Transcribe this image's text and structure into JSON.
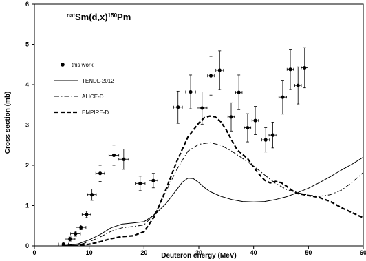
{
  "chart_data": {
    "type": "scatter",
    "title": {
      "sup_prefix": "nat",
      "main": "Sm(d,x)",
      "sup_suffix": "150",
      "suffix": "Pm"
    },
    "xlabel": "Deuteron energy (MeV)",
    "ylabel": "Cross section (mb)",
    "xlim": [
      0,
      60
    ],
    "ylim": [
      0,
      6
    ],
    "xticks": [
      0,
      10,
      20,
      30,
      40,
      50,
      60
    ],
    "yticks": [
      0,
      1,
      2,
      3,
      4,
      5,
      6
    ],
    "grid": false,
    "legend_position": "left",
    "legend": [
      {
        "label": "this work",
        "style": "points"
      },
      {
        "label": "TENDL-2012",
        "style": "solid"
      },
      {
        "label": "ALICE-D",
        "style": "dash-dot"
      },
      {
        "label": "EMPIRE-D",
        "style": "thick-dashed"
      }
    ],
    "colors": {
      "series": "#000000",
      "background": "#ffffff"
    },
    "series": [
      {
        "name": "this work",
        "kind": "points",
        "x": [
          5.3,
          6.5,
          7.5,
          8.5,
          9.5,
          10.5,
          12.0,
          14.5,
          16.3,
          19.3,
          21.7,
          26.2,
          28.5,
          30.6,
          32.2,
          33.8,
          35.9,
          37.3,
          38.9,
          40.3,
          42.2,
          43.5,
          45.3,
          46.7,
          48.1,
          49.3
        ],
        "y": [
          0.04,
          0.17,
          0.3,
          0.46,
          0.78,
          1.27,
          1.8,
          2.25,
          2.15,
          1.55,
          1.62,
          3.44,
          3.82,
          3.42,
          4.22,
          4.36,
          3.2,
          3.81,
          2.93,
          3.11,
          2.63,
          2.75,
          3.69,
          4.38,
          3.98,
          4.42
        ],
        "xerr": [
          0.9,
          0.9,
          0.9,
          0.9,
          0.8,
          0.8,
          0.8,
          0.9,
          0.9,
          0.9,
          0.8,
          0.8,
          0.9,
          0.9,
          0.6,
          0.7,
          0.6,
          0.6,
          0.6,
          0.6,
          0.7,
          0.7,
          0.7,
          0.6,
          0.6,
          0.6
        ],
        "yerr": [
          0.03,
          0.05,
          0.06,
          0.06,
          0.08,
          0.14,
          0.2,
          0.25,
          0.25,
          0.18,
          0.18,
          0.4,
          0.42,
          0.4,
          0.48,
          0.48,
          0.35,
          0.43,
          0.35,
          0.35,
          0.3,
          0.32,
          0.42,
          0.5,
          0.46,
          0.5
        ]
      },
      {
        "name": "TENDL-2012",
        "kind": "line",
        "dash": "solid",
        "x": [
          5,
          8,
          10,
          12,
          14,
          16,
          18,
          20,
          22,
          24,
          26,
          27,
          28,
          29,
          30,
          31,
          32,
          34,
          36,
          38,
          40,
          42,
          44,
          46,
          48,
          50,
          52,
          54,
          56,
          58,
          60
        ],
        "y": [
          0.0,
          0.05,
          0.15,
          0.28,
          0.45,
          0.54,
          0.57,
          0.6,
          0.78,
          1.05,
          1.4,
          1.58,
          1.68,
          1.67,
          1.57,
          1.45,
          1.35,
          1.23,
          1.15,
          1.1,
          1.09,
          1.1,
          1.15,
          1.22,
          1.32,
          1.43,
          1.57,
          1.72,
          1.88,
          2.03,
          2.2
        ]
      },
      {
        "name": "ALICE-D",
        "kind": "line",
        "dash": "dash-dot",
        "x": [
          5,
          8,
          10,
          12,
          14,
          16,
          18,
          20,
          22,
          24,
          26,
          28,
          30,
          32,
          34,
          36,
          38,
          40,
          42,
          44,
          46,
          48,
          50,
          52,
          54,
          56,
          58,
          60
        ],
        "y": [
          0.0,
          0.02,
          0.1,
          0.22,
          0.36,
          0.45,
          0.48,
          0.52,
          0.8,
          1.35,
          1.9,
          2.35,
          2.52,
          2.56,
          2.5,
          2.35,
          2.17,
          1.98,
          1.76,
          1.55,
          1.4,
          1.32,
          1.26,
          1.23,
          1.27,
          1.38,
          1.58,
          1.82
        ]
      },
      {
        "name": "EMPIRE-D",
        "kind": "line",
        "dash": "thick-dashed",
        "x": [
          5,
          8,
          10,
          12,
          14,
          16,
          18,
          20,
          22,
          24,
          26,
          28,
          30,
          31,
          32,
          33,
          34,
          35,
          36,
          37,
          38,
          39,
          40,
          41,
          42,
          43,
          44,
          45,
          46,
          47,
          48,
          50,
          52,
          54,
          56,
          58,
          60
        ],
        "y": [
          0.0,
          0.01,
          0.04,
          0.1,
          0.18,
          0.23,
          0.25,
          0.35,
          0.75,
          1.4,
          2.1,
          2.7,
          3.05,
          3.18,
          3.22,
          3.2,
          3.08,
          2.88,
          2.62,
          2.38,
          2.27,
          2.15,
          1.95,
          1.78,
          1.63,
          1.56,
          1.6,
          1.57,
          1.48,
          1.38,
          1.3,
          1.25,
          1.2,
          1.1,
          0.95,
          0.82,
          0.7
        ]
      }
    ]
  }
}
